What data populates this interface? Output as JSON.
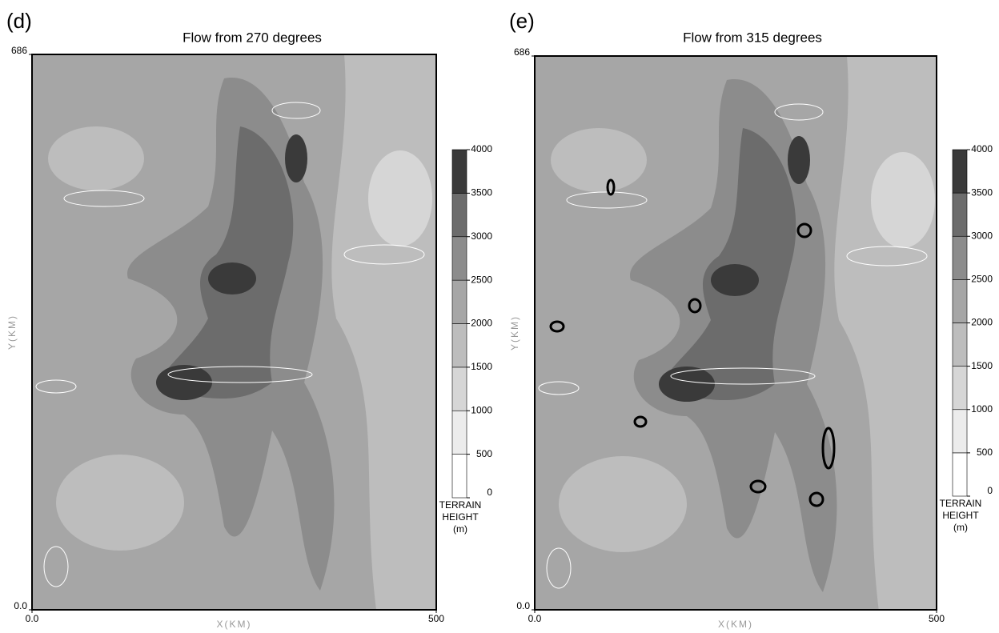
{
  "chart_data": [
    {
      "type": "contour",
      "panel_label": "(d)",
      "title": "Flow from 270 degrees",
      "x_label": "X(KM)",
      "y_label": "Y(KM)",
      "xlim": [
        0,
        500
      ],
      "ylim": [
        0,
        686
      ],
      "xticks": [
        {
          "value": 0,
          "label": "0.0"
        },
        500
      ],
      "yticks": [
        {
          "value": 0,
          "label": "0.0"
        },
        686
      ],
      "colorbar": {
        "label": [
          "TERRAIN",
          "HEIGHT",
          "(m)"
        ],
        "ticks": [
          0,
          500,
          1000,
          1500,
          2000,
          2500,
          3000,
          3500,
          4000
        ],
        "colors": [
          "#ffffff",
          "#ececec",
          "#d6d6d6",
          "#bdbdbd",
          "#a6a6a6",
          "#8c8c8c",
          "#6c6c6c",
          "#3a3a3a"
        ]
      }
    },
    {
      "type": "contour",
      "panel_label": "(e)",
      "title": "Flow from 315 degrees",
      "x_label": "X(KM)",
      "y_label": "Y(KM)",
      "xlim": [
        0,
        500
      ],
      "ylim": [
        0,
        686
      ],
      "xticks": [
        {
          "value": 0,
          "label": "0.0"
        },
        500
      ],
      "yticks": [
        {
          "value": 0,
          "label": "0.0"
        },
        686
      ],
      "colorbar": {
        "label": [
          "TERRAIN",
          "HEIGHT",
          "(m)"
        ],
        "ticks": [
          0,
          500,
          1000,
          1500,
          2000,
          2500,
          3000,
          3500,
          4000
        ],
        "colors": [
          "#ffffff",
          "#ececec",
          "#d6d6d6",
          "#bdbdbd",
          "#a6a6a6",
          "#8c8c8c",
          "#6c6c6c",
          "#3a3a3a"
        ]
      }
    }
  ]
}
